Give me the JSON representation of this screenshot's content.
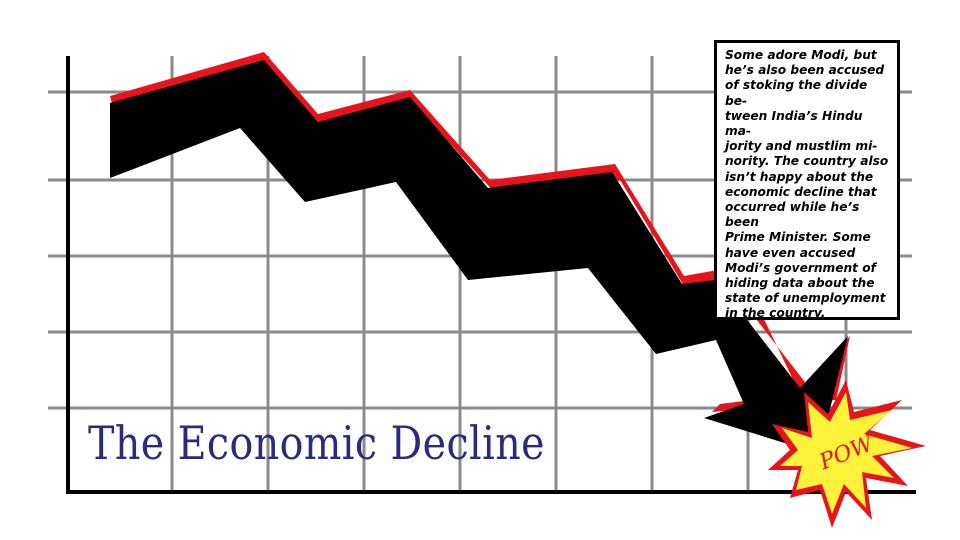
{
  "title": "The Economic Decline",
  "callout": {
    "text": "Some adore Modi, but\nhe’s also been accused\nof stoking the divide be-\ntween India’s Hindu ma-\njority and mustlim mi-\nnority. The country also\nisn’t happy about the\neconomic decline that\noccurred while he’s been\nPrime Minister. Some\nhave even accused\nModi’s government of\nhiding data about the\nstate of unemployment\nin the country."
  },
  "burst": {
    "label": "POW"
  },
  "colors": {
    "arrow": "#000000",
    "arrow_edge": "#e8141c",
    "grid": "#8a8a8a",
    "axis": "#000000",
    "title": "#2a2a7e",
    "burst_fill": "#fff23a",
    "burst_edge": "#e8141c"
  }
}
